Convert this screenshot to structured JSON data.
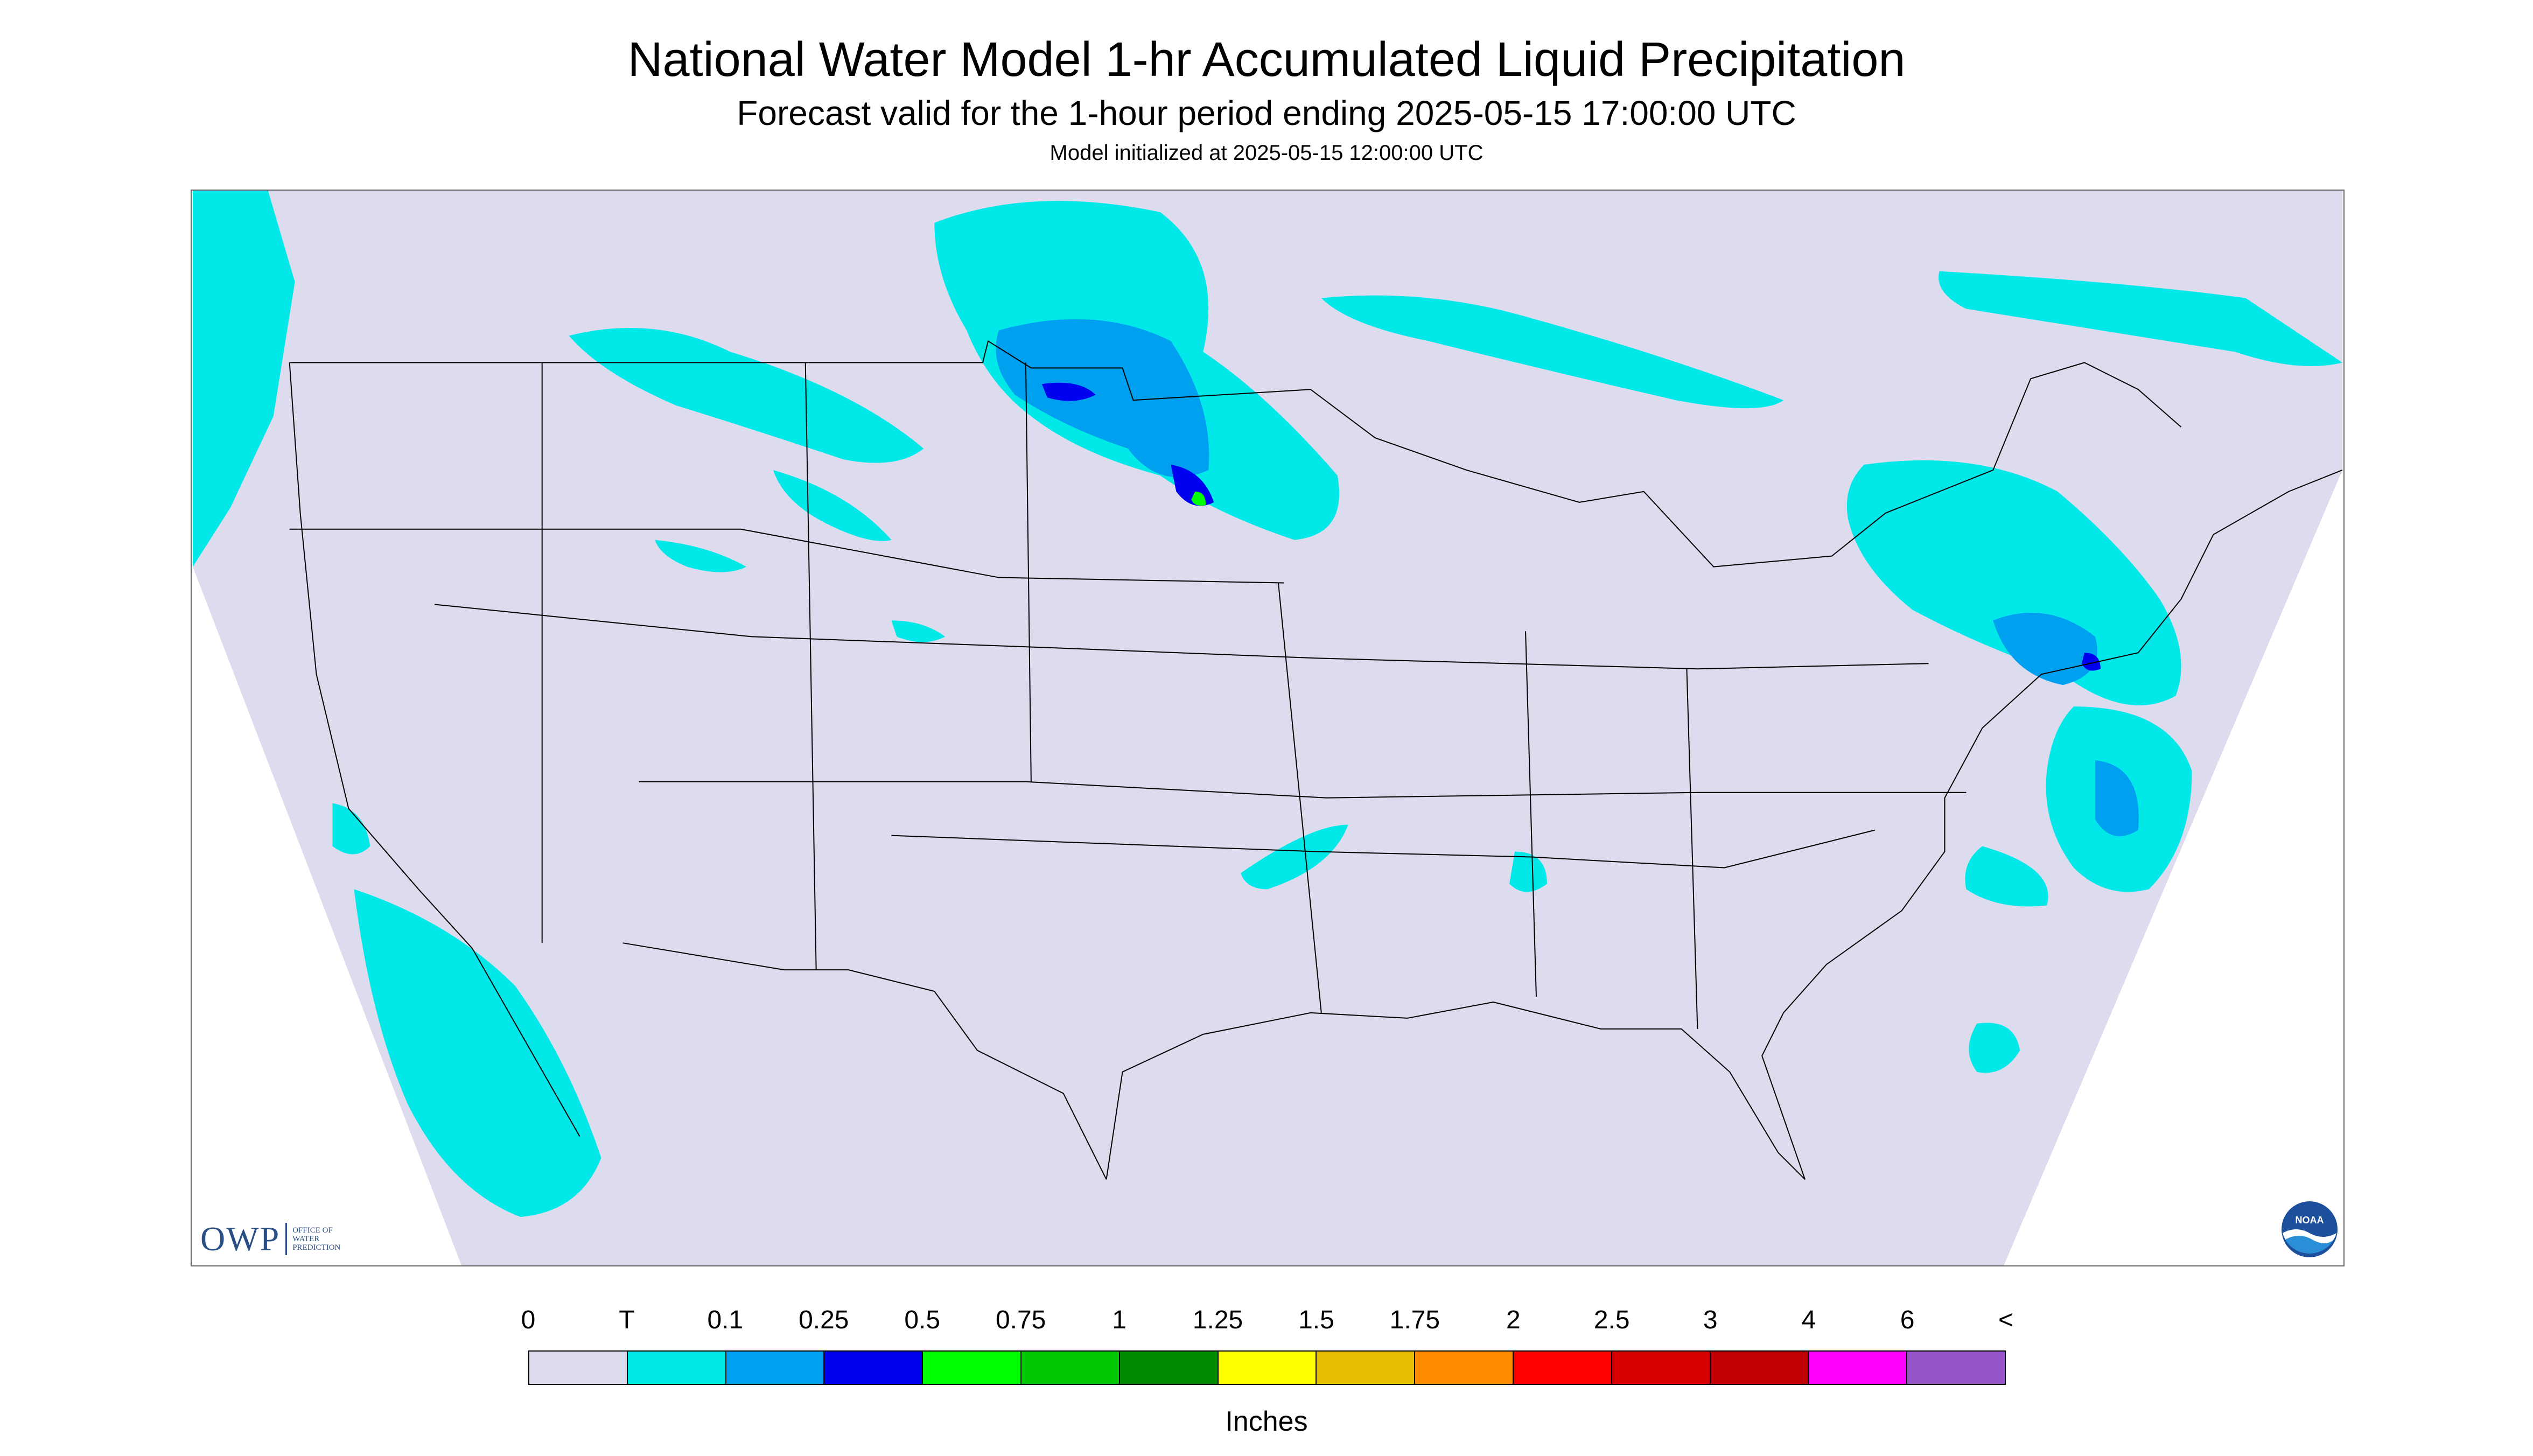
{
  "header": {
    "title": "National Water Model 1-hr Accumulated Liquid Precipitation",
    "subtitle": "Forecast valid for the 1-hour period ending 2025-05-15 17:00:00 UTC",
    "initialized": "Model initialized at 2025-05-15 12:00:00 UTC"
  },
  "logos": {
    "owp_text": "OWP",
    "owp_sub": "OFFICE OF\nWATER\nPREDICTION",
    "noaa_text": "NOAA"
  },
  "colors": {
    "no_data": "#dcdcee",
    "trace": "#00e8e8",
    "light": "#00a0f0",
    "moderate": "#0000f0",
    "heavy": "#00ff00",
    "map_line": "#000000"
  },
  "legend": {
    "units": "Inches",
    "ticks": [
      "0",
      "T",
      "0.1",
      "0.25",
      "0.5",
      "0.75",
      "1",
      "1.25",
      "1.5",
      "1.75",
      "2",
      "2.5",
      "3",
      "4",
      "6",
      "<"
    ],
    "swatches": [
      "#dcdcee",
      "#00e8e8",
      "#00a0f0",
      "#0000f0",
      "#00ff00",
      "#00c800",
      "#008c00",
      "#ffff00",
      "#e6bf00",
      "#ff8c00",
      "#ff0000",
      "#d60000",
      "#c00000",
      "#ff00ff",
      "#9655c8"
    ]
  }
}
